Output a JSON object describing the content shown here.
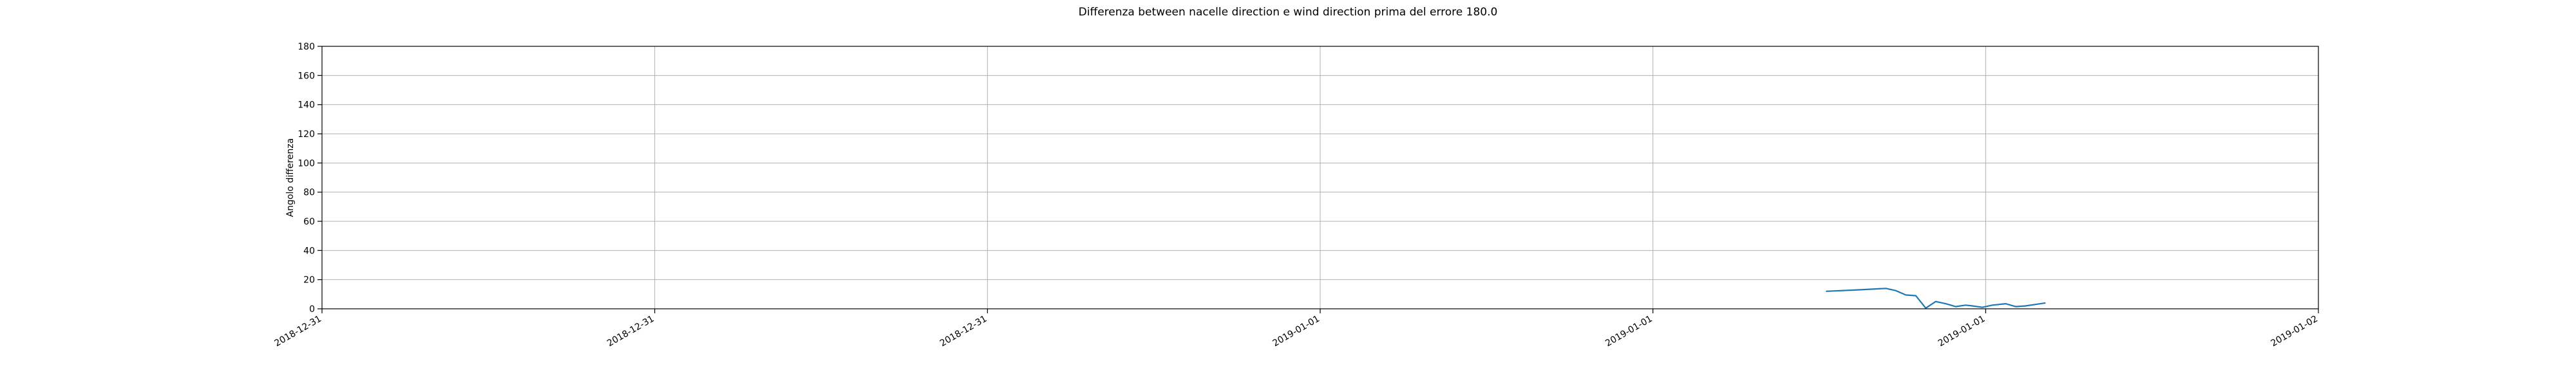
{
  "chart_data": {
    "type": "line",
    "title": "Differenza between nacelle direction e wind direction prima del errore 180.0",
    "xlabel": "",
    "ylabel": "Angolo differenza",
    "ylim": [
      0,
      180
    ],
    "yticks": [
      0,
      20,
      40,
      60,
      80,
      100,
      120,
      140,
      160,
      180
    ],
    "xlim": [
      0,
      6
    ],
    "xticks": [
      {
        "pos": 0,
        "label": "2018-12-31"
      },
      {
        "pos": 1,
        "label": "2018-12-31"
      },
      {
        "pos": 2,
        "label": "2018-12-31"
      },
      {
        "pos": 3,
        "label": "2019-01-01"
      },
      {
        "pos": 4,
        "label": "2019-01-01"
      },
      {
        "pos": 5,
        "label": "2019-01-01"
      },
      {
        "pos": 6,
        "label": "2019-01-02"
      }
    ],
    "grid": true,
    "series": [
      {
        "color": "#1f77b4",
        "points": [
          [
            4.52,
            12.0
          ],
          [
            4.62,
            13.0
          ],
          [
            4.7,
            14.0
          ],
          [
            4.73,
            12.5
          ],
          [
            4.76,
            9.5
          ],
          [
            4.79,
            9.0
          ],
          [
            4.82,
            0.5
          ],
          [
            4.85,
            5.0
          ],
          [
            4.88,
            3.5
          ],
          [
            4.91,
            1.5
          ],
          [
            4.94,
            2.5
          ],
          [
            4.96,
            2.0
          ],
          [
            4.99,
            1.0
          ],
          [
            5.02,
            2.5
          ],
          [
            5.06,
            3.5
          ],
          [
            5.09,
            1.5
          ],
          [
            5.12,
            2.0
          ],
          [
            5.15,
            3.0
          ],
          [
            5.18,
            4.0
          ]
        ]
      }
    ]
  }
}
